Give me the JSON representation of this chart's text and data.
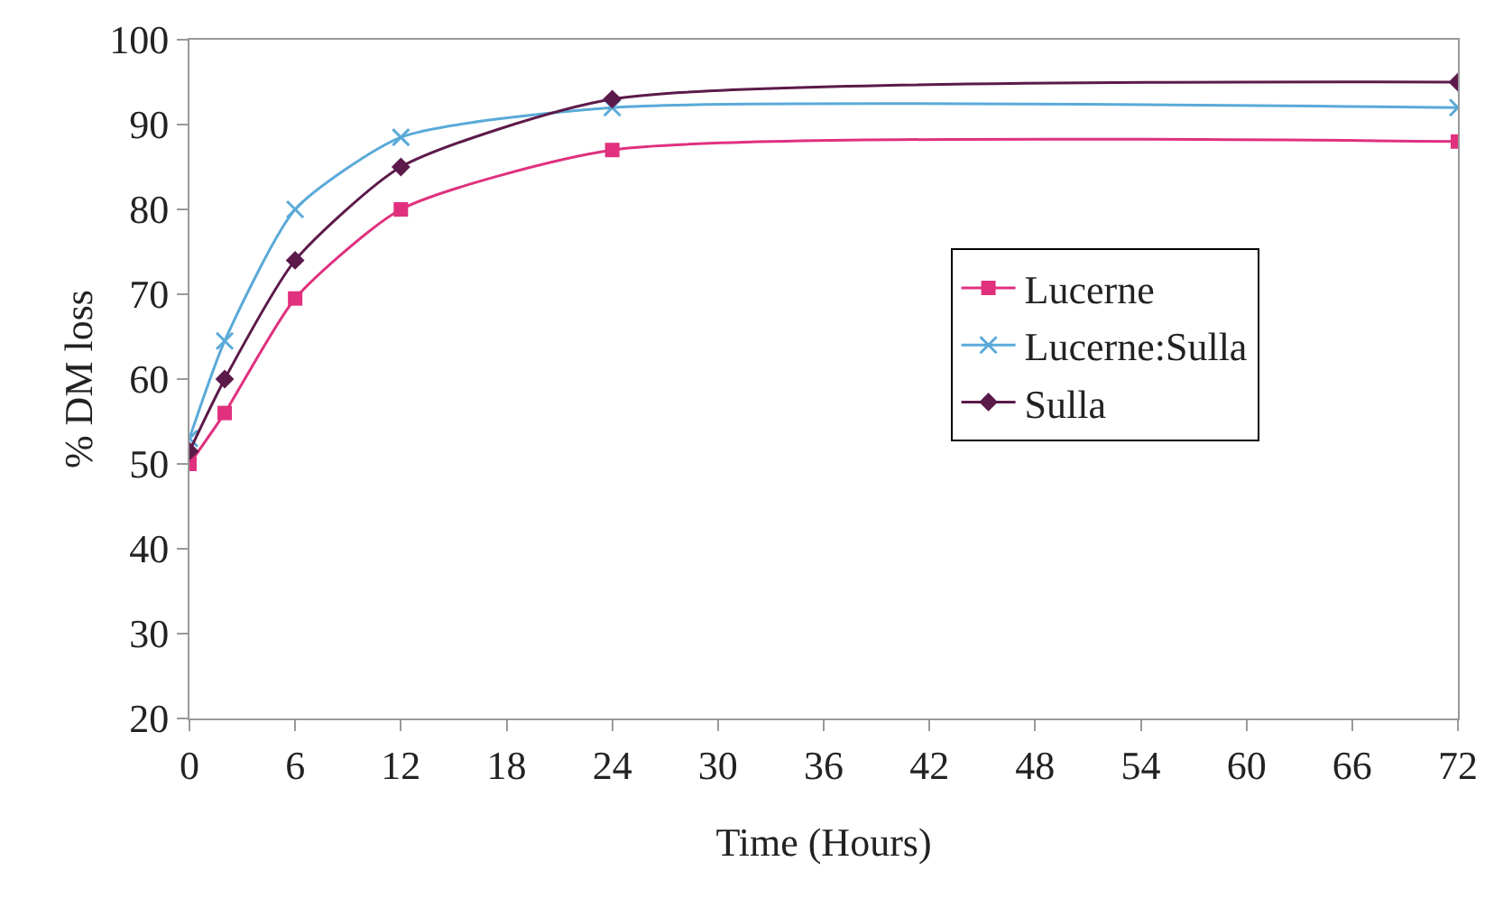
{
  "chart_data": {
    "type": "line",
    "xlabel": "Time (Hours)",
    "ylabel": "% DM loss",
    "x": [
      0,
      2,
      6,
      12,
      24,
      72
    ],
    "series": [
      {
        "name": "Lucerne",
        "color": "#e0307e",
        "marker": "square",
        "values": [
          50,
          56,
          69.5,
          80,
          87,
          88
        ]
      },
      {
        "name": "Lucerne:Sulla",
        "color": "#5aaad8",
        "marker": "cross",
        "values": [
          53,
          64.5,
          80,
          88.5,
          92,
          92
        ]
      },
      {
        "name": "Sulla",
        "color": "#5c1a4a",
        "marker": "diamond",
        "values": [
          51.5,
          60,
          74,
          85,
          93,
          95
        ]
      }
    ],
    "xlim": [
      0,
      72
    ],
    "xticks": [
      0,
      6,
      12,
      18,
      24,
      30,
      36,
      42,
      48,
      54,
      60,
      66,
      72
    ],
    "ylim": [
      20,
      100
    ],
    "yticks": [
      20,
      30,
      40,
      50,
      60,
      70,
      80,
      90,
      100
    ],
    "grid": false,
    "legend": "right",
    "line_style": "solid"
  }
}
